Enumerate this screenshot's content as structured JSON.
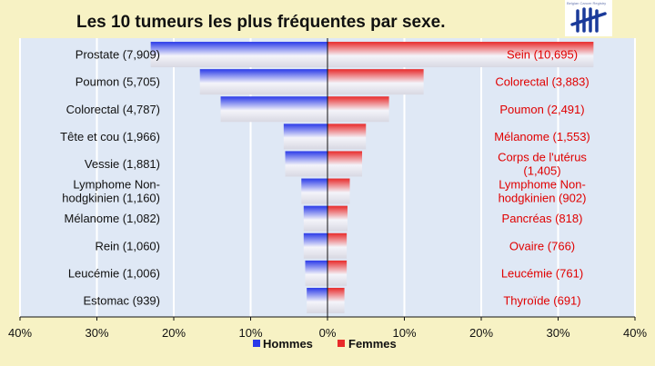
{
  "logo": {
    "caption": "Belgian Cancer Registry",
    "icon": "tally-marks-icon",
    "color": "#1a3a9a"
  },
  "chart_data": {
    "type": "bar",
    "title": "Les 10 tumeurs les plus fréquentes par sexe.",
    "orientation": "horizontal-population-pyramid",
    "xlim": [
      -40,
      40
    ],
    "x_ticks": [
      "40%",
      "30%",
      "20%",
      "10%",
      "0%",
      "10%",
      "20%",
      "30%",
      "40%"
    ],
    "grid": true,
    "legend_position": "bottom",
    "series": [
      {
        "name": "Hommes",
        "color": "#2a3ae8",
        "labels": [
          "Prostate (7,909)",
          "Poumon (5,705)",
          "Colorectal (4,787)",
          "Tête et cou (1,966)",
          "Vessie (1,881)",
          [
            "Lymphome Non-",
            "hodgkinien (1,160)"
          ],
          "Mélanome (1,082)",
          "Rein (1,060)",
          "Leucémie (1,006)",
          "Estomac (939)"
        ],
        "counts": [
          7909,
          5705,
          4787,
          1966,
          1881,
          1160,
          1082,
          1060,
          1006,
          939
        ],
        "values": [
          23.0,
          16.6,
          13.9,
          5.7,
          5.5,
          3.4,
          3.1,
          3.1,
          2.9,
          2.7
        ]
      },
      {
        "name": "Femmes",
        "color": "#e82a2a",
        "labels": [
          "Sein (10,695)",
          "Colorectal (3,883)",
          "Poumon (2,491)",
          "Mélanome (1,553)",
          [
            "Corps de l'utérus",
            "(1,405)"
          ],
          [
            "Lymphome Non-",
            "hodgkinien (902)"
          ],
          "Pancréas (818)",
          "Ovaire (766)",
          "Leucémie (761)",
          "Thyroïde (691)"
        ],
        "counts": [
          10695,
          3883,
          2491,
          1553,
          1405,
          902,
          818,
          766,
          761,
          691
        ],
        "values": [
          34.6,
          12.5,
          8.0,
          5.0,
          4.5,
          2.9,
          2.6,
          2.5,
          2.5,
          2.2
        ]
      }
    ]
  }
}
